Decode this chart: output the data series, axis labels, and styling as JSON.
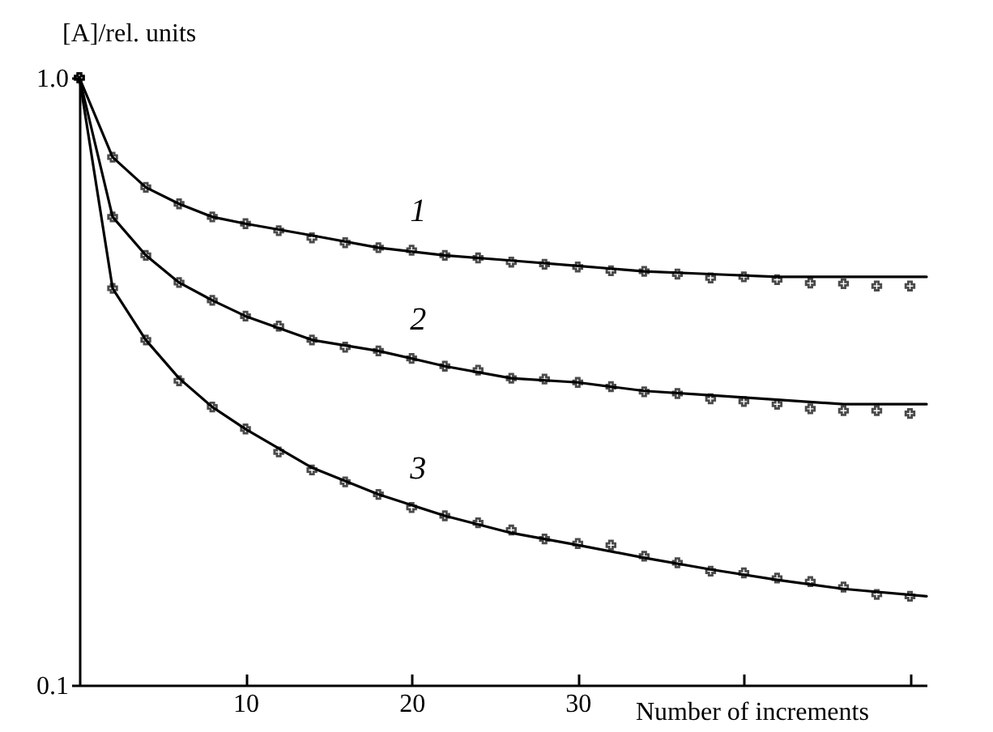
{
  "chart_data": {
    "type": "scatter",
    "xlabel": "Number of increments",
    "ylabel": "[A]/rel. units",
    "log": "y",
    "xlim": [
      0,
      51
    ],
    "ylim": [
      0.1,
      1
    ],
    "xticks": [
      10,
      20,
      30,
      {
        "value": 40,
        "label": null
      },
      {
        "value": 50,
        "label": null
      }
    ],
    "yticks": [
      0.1,
      {
        "value": 1,
        "label": "1.0"
      }
    ],
    "marker": "cross",
    "annotations": [
      "1",
      "2",
      "3"
    ],
    "series": [
      {
        "color": "#000000",
        "x": [
          0,
          2,
          4,
          6,
          8,
          10,
          12,
          14,
          16,
          18,
          20,
          22,
          24,
          26,
          28,
          30,
          32,
          34,
          36,
          38,
          40,
          42,
          44,
          46,
          48,
          50
        ],
        "values": [
          1.0,
          0.74,
          0.66,
          0.62,
          0.59,
          0.575,
          0.56,
          0.545,
          0.535,
          0.525,
          0.52,
          0.51,
          0.505,
          0.497,
          0.493,
          0.488,
          0.481,
          0.48,
          0.475,
          0.468,
          0.47,
          0.465,
          0.459,
          0.458,
          0.454,
          0.454
        ]
      },
      {
        "color": "#000000",
        "x": [
          0,
          2,
          4,
          6,
          8,
          10,
          12,
          14,
          16,
          18,
          20,
          22,
          24,
          26,
          28,
          30,
          32,
          34,
          36,
          38,
          40,
          42,
          44,
          46,
          48,
          50
        ],
        "values": [
          1.0,
          0.59,
          0.51,
          0.46,
          0.43,
          0.405,
          0.39,
          0.37,
          0.36,
          0.355,
          0.345,
          0.335,
          0.33,
          0.32,
          0.319,
          0.315,
          0.31,
          0.304,
          0.302,
          0.296,
          0.293,
          0.29,
          0.285,
          0.283,
          0.283,
          0.28
        ]
      },
      {
        "color": "#000000",
        "x": [
          0,
          2,
          4,
          6,
          8,
          10,
          12,
          14,
          16,
          18,
          20,
          22,
          24,
          26,
          28,
          30,
          32,
          34,
          36,
          38,
          40,
          42,
          44,
          46,
          48,
          50
        ],
        "values": [
          1.0,
          0.45,
          0.37,
          0.317,
          0.287,
          0.264,
          0.242,
          0.226,
          0.216,
          0.206,
          0.196,
          0.19,
          0.185,
          0.18,
          0.174,
          0.171,
          0.17,
          0.163,
          0.159,
          0.154,
          0.153,
          0.15,
          0.148,
          0.145,
          0.141,
          0.14
        ]
      },
      {
        "type": "line",
        "marker": "none",
        "color": "#000000",
        "x": [
          0,
          2,
          4,
          6,
          8,
          10,
          14,
          18,
          22,
          26,
          30,
          34,
          38,
          42,
          46,
          51
        ],
        "values": [
          1.0,
          0.74,
          0.66,
          0.62,
          0.59,
          0.575,
          0.55,
          0.525,
          0.51,
          0.5,
          0.49,
          0.48,
          0.475,
          0.47,
          0.47,
          0.47
        ]
      },
      {
        "type": "line",
        "marker": "none",
        "color": "#000000",
        "x": [
          0,
          2,
          4,
          6,
          8,
          10,
          14,
          18,
          22,
          26,
          30,
          34,
          38,
          42,
          46,
          51
        ],
        "values": [
          1.0,
          0.59,
          0.51,
          0.46,
          0.43,
          0.405,
          0.37,
          0.355,
          0.335,
          0.32,
          0.315,
          0.305,
          0.3,
          0.295,
          0.29,
          0.29
        ]
      },
      {
        "type": "line",
        "marker": "none",
        "color": "#000000",
        "x": [
          0,
          2,
          4,
          6,
          8,
          10,
          14,
          18,
          22,
          26,
          30,
          34,
          38,
          42,
          46,
          51
        ],
        "values": [
          1.0,
          0.45,
          0.37,
          0.32,
          0.287,
          0.264,
          0.228,
          0.206,
          0.19,
          0.178,
          0.17,
          0.162,
          0.155,
          0.149,
          0.144,
          0.14
        ]
      }
    ]
  }
}
